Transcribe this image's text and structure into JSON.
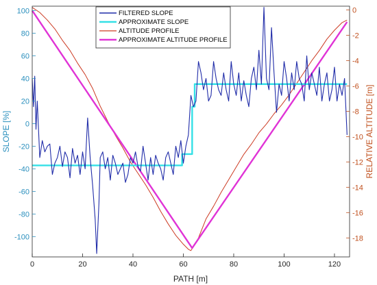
{
  "chart_data": {
    "type": "line",
    "xlabel": "PATH [m]",
    "ylabel_left": "SLOPE [%]",
    "ylabel_right": "RELATIVE ALTITUDE [m]",
    "xlim": [
      0,
      126
    ],
    "ylim_left": [
      -118,
      104
    ],
    "ylim_right": [
      -19.5,
      0.3
    ],
    "xticks": [
      0,
      20,
      40,
      60,
      80,
      100,
      120
    ],
    "yticks_left": [
      100,
      80,
      60,
      40,
      20,
      0,
      -20,
      -40,
      -60,
      -80,
      -100
    ],
    "yticks_right": [
      0,
      -2,
      -4,
      -6,
      -8,
      -10,
      -12,
      -14,
      -16,
      -18
    ],
    "grid": false,
    "legend_position": "top-center",
    "colors": {
      "filtered_slope": "#1f2ba8",
      "approximate_slope": "#33e0e6",
      "altitude_profile": "#cc3a22",
      "approximate_altitude_profile": "#e033d6",
      "left_axis": "#2a8fbd",
      "right_axis": "#c0501e"
    },
    "series": [
      {
        "name": "FILTERED SLOPE",
        "axis": "left",
        "x": [
          0,
          0.5,
          1,
          1.5,
          2,
          3,
          4,
          5,
          6,
          7,
          8,
          9,
          10,
          11,
          12,
          13,
          14,
          15,
          16,
          17,
          18,
          19,
          20,
          21,
          22,
          23,
          24,
          25,
          25.6,
          26.5,
          27,
          28,
          29,
          30,
          31,
          32,
          33,
          34,
          35,
          36,
          37,
          38,
          39,
          40,
          41,
          42,
          43,
          44,
          45,
          46,
          47,
          48,
          49,
          50,
          51,
          52,
          53,
          54,
          55,
          56,
          57,
          58,
          59,
          60,
          61,
          62,
          63,
          64,
          65,
          66,
          67,
          68,
          69,
          70,
          71,
          72,
          73,
          74,
          75,
          76,
          77,
          78,
          79,
          80,
          81,
          82,
          83,
          84,
          85,
          86,
          87,
          88,
          89,
          90,
          91,
          92,
          93,
          94,
          95,
          96,
          97,
          98,
          99,
          100,
          101,
          102,
          103,
          104,
          105,
          106,
          107,
          108,
          109,
          110,
          111,
          112,
          113,
          114,
          115,
          116,
          117,
          118,
          119,
          120,
          121,
          122,
          123,
          124,
          125
        ],
        "y": [
          40,
          15,
          42,
          -5,
          20,
          -30,
          -15,
          -25,
          -20,
          -18,
          -45,
          -35,
          -30,
          -20,
          -38,
          -25,
          -30,
          -48,
          -22,
          -35,
          -28,
          -45,
          -25,
          -40,
          5,
          -30,
          -55,
          -85,
          -115,
          -70,
          -30,
          -25,
          -40,
          -30,
          -50,
          -28,
          -35,
          -45,
          -40,
          -35,
          -52,
          -45,
          -30,
          -35,
          -25,
          -38,
          -42,
          -20,
          -35,
          -50,
          -30,
          -45,
          -28,
          -35,
          -40,
          -50,
          -30,
          -25,
          -35,
          -45,
          -20,
          -30,
          -15,
          -35,
          -20,
          -10,
          25,
          15,
          20,
          55,
          45,
          30,
          40,
          20,
          25,
          55,
          40,
          30,
          25,
          45,
          30,
          20,
          55,
          35,
          25,
          45,
          20,
          38,
          25,
          15,
          40,
          50,
          30,
          65,
          35,
          103,
          40,
          30,
          85,
          45,
          10,
          35,
          25,
          55,
          40,
          20,
          45,
          30,
          55,
          40,
          35,
          20,
          60,
          30,
          45,
          35,
          25,
          50,
          20,
          35,
          45,
          20,
          30,
          50,
          20,
          35,
          25,
          40,
          -10
        ],
        "note": "approximate trace read from figure"
      },
      {
        "name": "APPROXIMATE SLOPE",
        "axis": "left",
        "x": [
          0,
          59.5,
          59.5,
          63.5,
          63.5,
          64.5,
          64.5,
          125
        ],
        "y": [
          -37,
          -37,
          -27,
          -27,
          15,
          15,
          35,
          35
        ]
      },
      {
        "name": "ALTITUDE PROFILE",
        "axis": "right",
        "x": [
          0,
          3,
          6,
          9,
          12,
          15,
          18,
          21,
          24,
          27,
          30,
          33,
          36,
          39,
          42,
          45,
          48,
          51,
          54,
          57,
          60,
          62,
          63,
          64,
          66,
          69,
          72,
          75,
          78,
          81,
          84,
          87,
          90,
          93,
          96,
          99,
          102,
          105,
          108,
          111,
          114,
          117,
          120,
          123,
          125
        ],
        "y": [
          0.2,
          -0.2,
          -0.8,
          -1.5,
          -2.4,
          -3.2,
          -4.2,
          -5.1,
          -6.2,
          -7.6,
          -8.8,
          -9.9,
          -10.9,
          -12.0,
          -12.9,
          -13.8,
          -14.8,
          -15.9,
          -16.9,
          -17.8,
          -18.5,
          -18.9,
          -19.0,
          -18.7,
          -18.0,
          -16.5,
          -15.5,
          -14.4,
          -13.4,
          -12.4,
          -11.4,
          -10.6,
          -9.7,
          -9.0,
          -8.2,
          -7.5,
          -6.7,
          -5.8,
          -4.9,
          -4.0,
          -3.2,
          -2.3,
          -1.6,
          -1.0,
          -0.8
        ]
      },
      {
        "name": "APPROXIMATE ALTITUDE PROFILE",
        "axis": "right",
        "x": [
          0,
          63.5,
          125
        ],
        "y": [
          -0.05,
          -18.8,
          -0.95
        ]
      }
    ]
  }
}
